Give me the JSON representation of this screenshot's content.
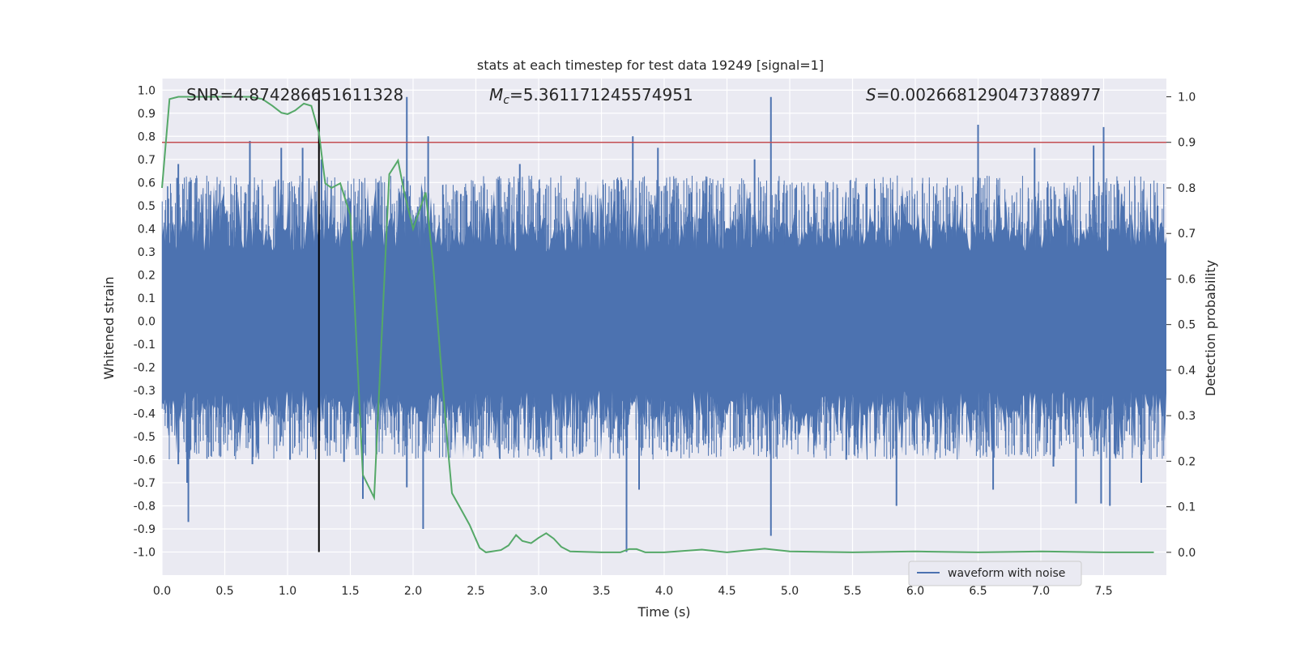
{
  "chart_data": {
    "type": "line",
    "title": "stats at each timestep for test data 19249 [signal=1]",
    "xlabel": "Time (s)",
    "ylabel_left": "Whitened strain",
    "ylabel_right": "Detection probability",
    "xlim": [
      0,
      8
    ],
    "ylim_left": [
      -1.1,
      1.05
    ],
    "ylim_right": [
      -0.05,
      1.04
    ],
    "x_ticks": [
      "0.0",
      "0.5",
      "1.0",
      "1.5",
      "2.0",
      "2.5",
      "3.0",
      "3.5",
      "4.0",
      "4.5",
      "5.0",
      "5.5",
      "6.0",
      "6.5",
      "7.0",
      "7.5"
    ],
    "x_tick_values": [
      0,
      0.5,
      1,
      1.5,
      2,
      2.5,
      3,
      3.5,
      4,
      4.5,
      5,
      5.5,
      6,
      6.5,
      7,
      7.5
    ],
    "y_left_ticks": [
      "1.0",
      "0.9",
      "0.8",
      "0.7",
      "0.6",
      "0.5",
      "0.4",
      "0.3",
      "0.2",
      "0.1",
      "0.0",
      "-0.1",
      "-0.2",
      "-0.3",
      "-0.4",
      "-0.5",
      "-0.6",
      "-0.7",
      "-0.8",
      "-0.9",
      "-1.0"
    ],
    "y_left_tick_values": [
      1.0,
      0.9,
      0.8,
      0.7,
      0.6,
      0.5,
      0.4,
      0.3,
      0.2,
      0.1,
      0.0,
      -0.1,
      -0.2,
      -0.3,
      -0.4,
      -0.5,
      -0.6,
      -0.7,
      -0.8,
      -0.9,
      -1.0
    ],
    "y_right_ticks": [
      "1.0",
      "0.9",
      "0.8",
      "0.7",
      "0.6",
      "0.5",
      "0.4",
      "0.3",
      "0.2",
      "0.1",
      "0.0"
    ],
    "y_right_tick_values": [
      1.0,
      0.9,
      0.8,
      0.7,
      0.6,
      0.5,
      0.4,
      0.3,
      0.2,
      0.1,
      0.0
    ],
    "threshold": 0.9,
    "marker_time": 1.25,
    "annotations": {
      "snr": "SNR=4.874286651611328",
      "mc_symbol": "M",
      "mc_sub": "c",
      "mc_value": "=5.361171245574951",
      "s_symbol": "S",
      "s_value": "=0.0026681290473788977"
    },
    "legend": "waveform with noise",
    "legend_position": "lower-right",
    "grid": true,
    "colors": {
      "background": "#eaeaf2",
      "grid": "#ffffff",
      "waveform": "#4c72b0",
      "probability": "#55a868",
      "threshold": "#c44e52",
      "marker": "#000000"
    },
    "series": [
      {
        "name": "waveform with noise",
        "axis": "left",
        "note_values": "noise band dense within about ±0.35",
        "spikes": [
          [
            0.05,
            0.53
          ],
          [
            0.12,
            0.62
          ],
          [
            0.2,
            -0.7
          ],
          [
            0.21,
            -0.87
          ],
          [
            0.13,
            -0.62
          ],
          [
            0.13,
            0.68
          ],
          [
            0.7,
            0.78
          ],
          [
            0.72,
            -0.62
          ],
          [
            0.95,
            0.75
          ],
          [
            1.02,
            -0.6
          ],
          [
            1.12,
            0.75
          ],
          [
            1.27,
            0.7
          ],
          [
            1.45,
            -0.61
          ],
          [
            1.6,
            -0.77
          ],
          [
            1.72,
            0.6
          ],
          [
            1.95,
            0.97
          ],
          [
            1.95,
            -0.72
          ],
          [
            2.08,
            -0.9
          ],
          [
            2.12,
            0.8
          ],
          [
            2.38,
            0.55
          ],
          [
            2.85,
            0.68
          ],
          [
            3.1,
            -0.6
          ],
          [
            3.7,
            -0.82
          ],
          [
            3.7,
            -1.0
          ],
          [
            3.75,
            0.8
          ],
          [
            3.8,
            -0.73
          ],
          [
            3.95,
            0.75
          ],
          [
            4.85,
            0.97
          ],
          [
            4.85,
            -0.93
          ],
          [
            4.72,
            0.7
          ],
          [
            5.3,
            0.6
          ],
          [
            5.45,
            -0.6
          ],
          [
            5.85,
            -0.8
          ],
          [
            6.5,
            0.85
          ],
          [
            6.62,
            -0.73
          ],
          [
            6.95,
            0.75
          ],
          [
            7.1,
            -0.63
          ],
          [
            7.28,
            -0.79
          ],
          [
            7.42,
            0.76
          ],
          [
            7.48,
            -0.79
          ],
          [
            7.5,
            0.84
          ],
          [
            7.55,
            -0.8
          ],
          [
            7.8,
            -0.7
          ],
          [
            7.93,
            0.5
          ]
        ]
      },
      {
        "name": "",
        "axis": "right",
        "x": [
          0.0,
          0.06,
          0.13,
          0.3,
          0.5,
          0.7,
          0.8,
          0.88,
          0.95,
          1.0,
          1.06,
          1.13,
          1.19,
          1.25,
          1.3,
          1.35,
          1.42,
          1.5,
          1.6,
          1.69,
          1.81,
          1.88,
          1.93,
          2.0,
          2.1,
          2.16,
          2.22,
          2.28,
          2.31,
          2.37,
          2.45,
          2.53,
          2.58,
          2.7,
          2.76,
          2.82,
          2.87,
          2.94,
          3.0,
          3.06,
          3.12,
          3.18,
          3.25,
          3.5,
          3.65,
          3.72,
          3.78,
          3.85,
          4.0,
          4.3,
          4.5,
          4.8,
          5.0,
          5.5,
          6.0,
          6.5,
          7.0,
          7.5,
          7.9
        ],
        "values": [
          0.8,
          0.995,
          1.0,
          1.0,
          1.0,
          1.0,
          0.995,
          0.98,
          0.965,
          0.962,
          0.97,
          0.985,
          0.98,
          0.92,
          0.81,
          0.8,
          0.81,
          0.74,
          0.17,
          0.12,
          0.83,
          0.86,
          0.79,
          0.71,
          0.79,
          0.63,
          0.42,
          0.22,
          0.13,
          0.1,
          0.06,
          0.01,
          0.0,
          0.005,
          0.015,
          0.038,
          0.025,
          0.02,
          0.032,
          0.042,
          0.03,
          0.012,
          0.002,
          0.0,
          0.0,
          0.007,
          0.007,
          0.0,
          0.0,
          0.006,
          0.0,
          0.008,
          0.002,
          0.0,
          0.002,
          0.0,
          0.002,
          0.0,
          0.0
        ]
      }
    ]
  }
}
